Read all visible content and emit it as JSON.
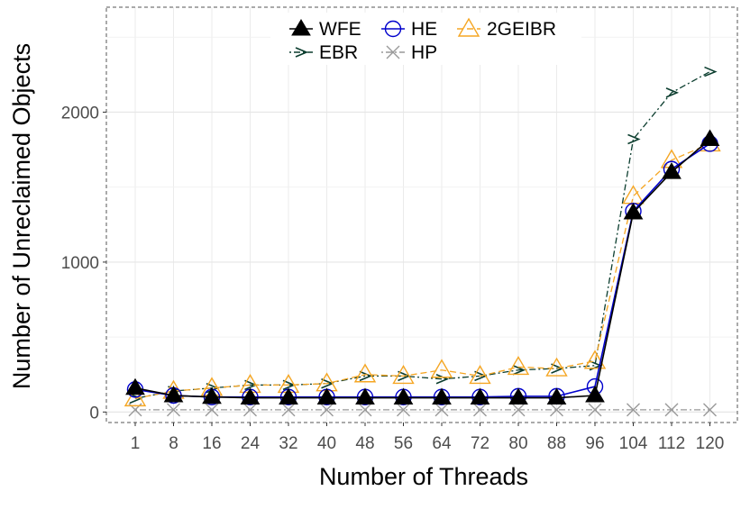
{
  "chart_data": {
    "type": "line",
    "xlabel": "Number of Threads",
    "ylabel": "Number of Unreclaimed Objects",
    "categories": [
      "1",
      "8",
      "16",
      "24",
      "32",
      "40",
      "48",
      "56",
      "64",
      "72",
      "80",
      "88",
      "96",
      "104",
      "112",
      "120"
    ],
    "ylim": [
      -70,
      2700
    ],
    "yticks": [
      0,
      1000,
      2000
    ],
    "grid": true,
    "legend_position": "top-center",
    "series": [
      {
        "name": "WFE",
        "color": "#000000",
        "marker": "filled-triangle",
        "line": "solid",
        "values": [
          160,
          110,
          100,
          95,
          95,
          95,
          95,
          95,
          95,
          95,
          95,
          95,
          110,
          1330,
          1600,
          1820
        ]
      },
      {
        "name": "HE",
        "color": "#0000cc",
        "marker": "open-circle",
        "line": "solid",
        "values": [
          150,
          110,
          100,
          100,
          100,
          100,
          100,
          100,
          100,
          100,
          105,
          105,
          170,
          1340,
          1620,
          1790
        ]
      },
      {
        "name": "2GEIBR",
        "color": "#f5a623",
        "marker": "open-triangle",
        "line": "dashed",
        "values": [
          90,
          140,
          160,
          180,
          180,
          190,
          250,
          240,
          280,
          240,
          300,
          290,
          340,
          1440,
          1680,
          1790
        ]
      },
      {
        "name": "EBR",
        "color": "#0b3d2e",
        "marker": "arrow",
        "line": "dotdash",
        "values": [
          90,
          140,
          160,
          180,
          180,
          190,
          240,
          240,
          220,
          240,
          280,
          290,
          310,
          1820,
          2130,
          2270
        ]
      },
      {
        "name": "HP",
        "color": "#999999",
        "marker": "cross",
        "line": "dotdash",
        "values": [
          15,
          15,
          15,
          15,
          15,
          15,
          15,
          15,
          15,
          15,
          15,
          15,
          15,
          15,
          15,
          15
        ]
      }
    ]
  }
}
